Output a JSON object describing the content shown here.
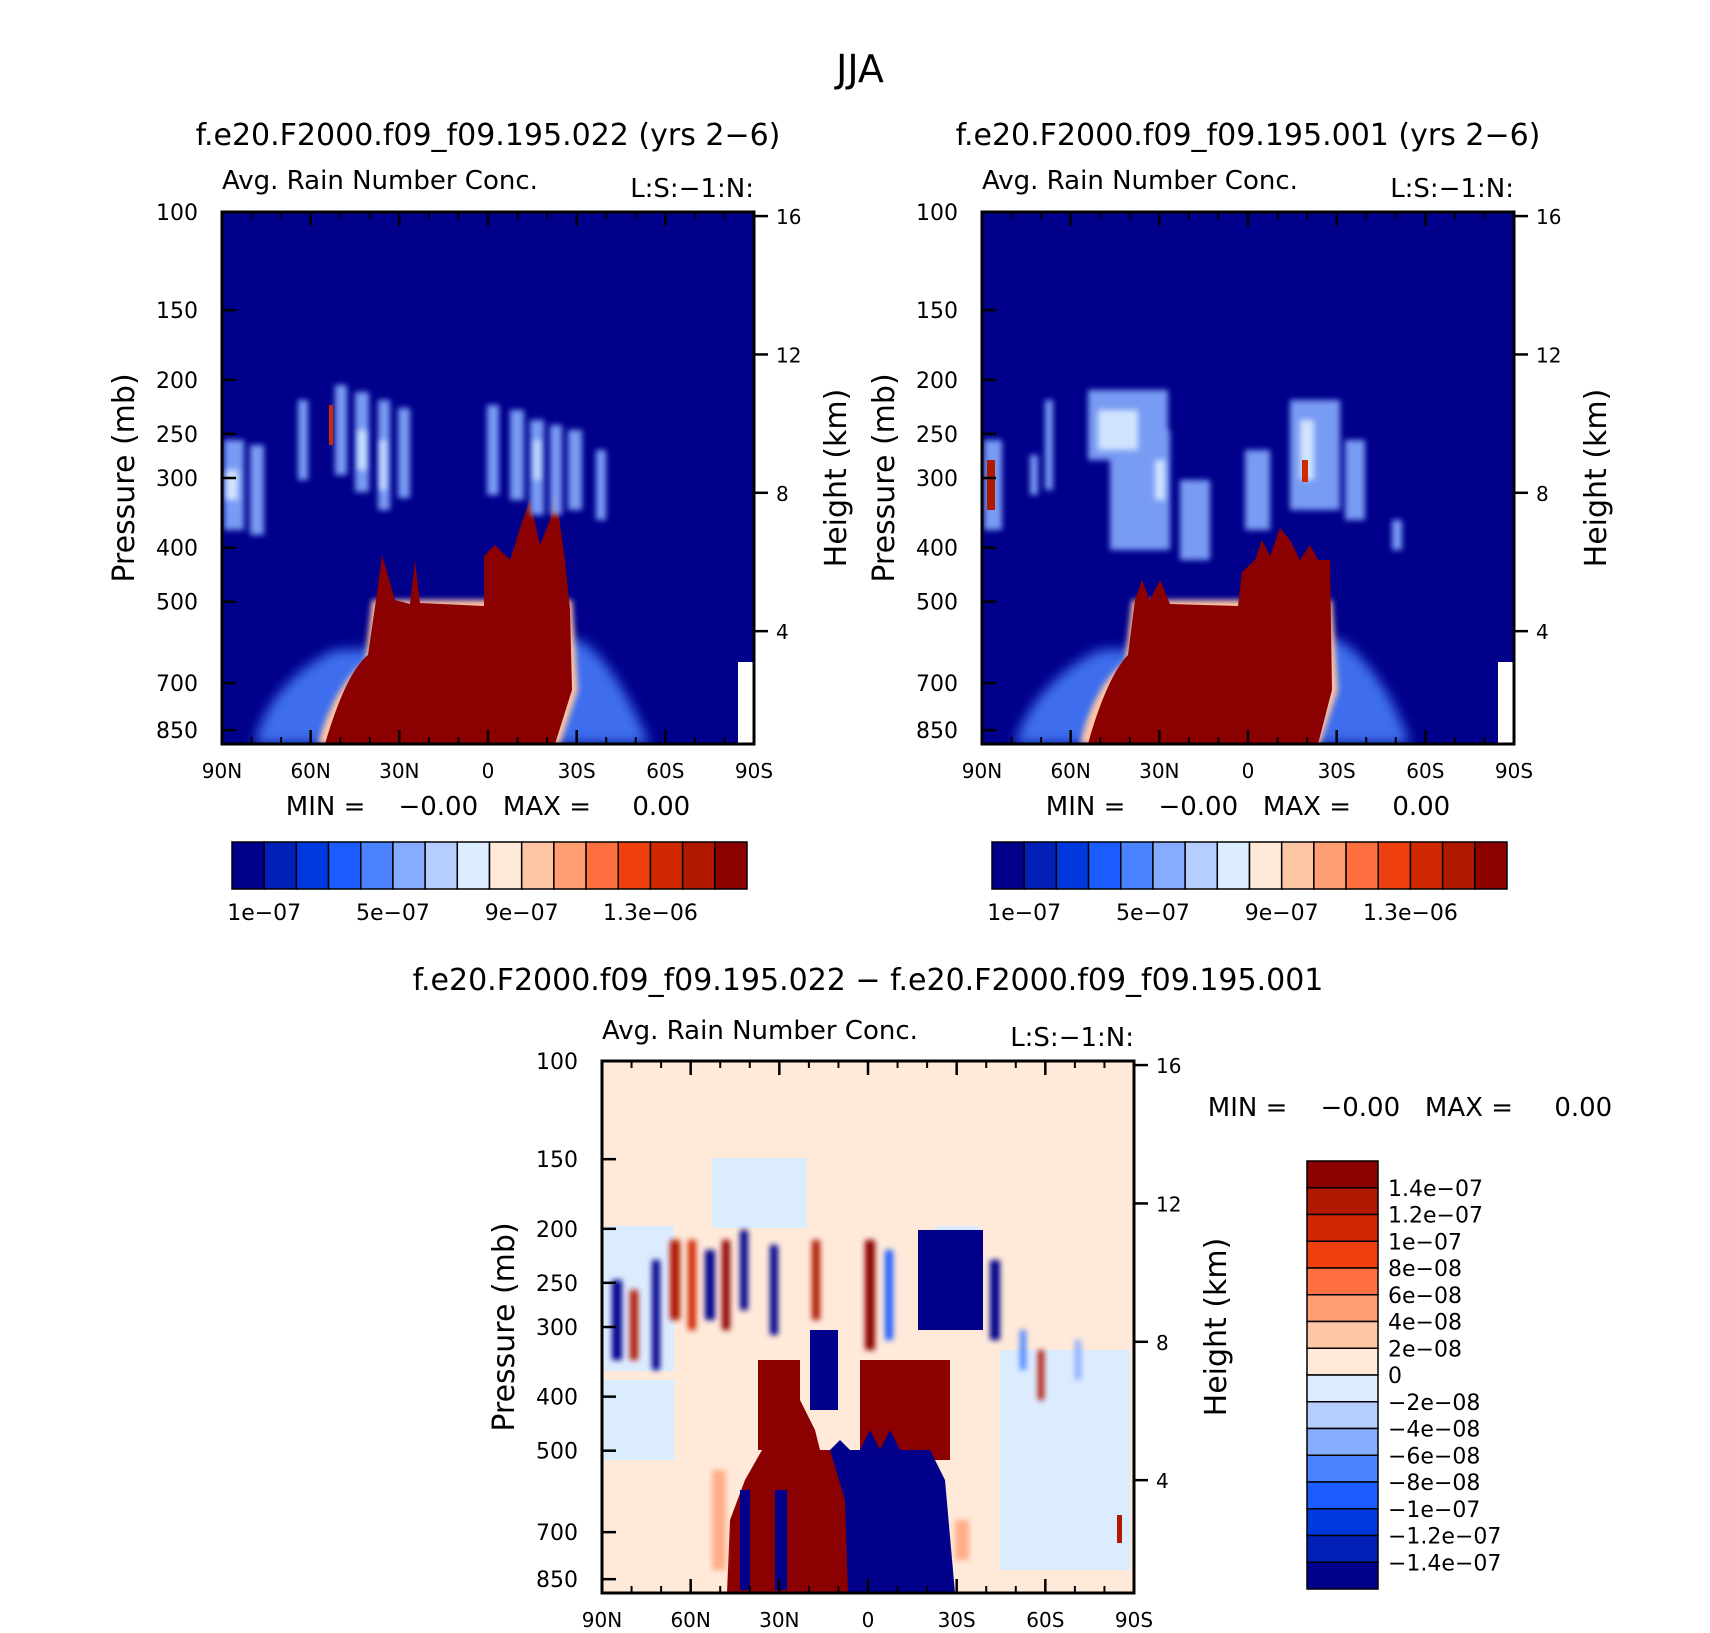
{
  "page": {
    "title": "JJA"
  },
  "panels": [
    {
      "id": "panel1",
      "title": "f.e20.F2000.f09_f09.195.022 (yrs 2−6)",
      "subtitle_left": "Avg. Rain Number Conc.",
      "subtitle_right": "L:S:−1:N:",
      "ylabel": "Pressure (mb)",
      "ylabel_right": "Height (km)",
      "minmax": "MIN =    −0.00   MAX =     0.00"
    },
    {
      "id": "panel2",
      "title": "f.e20.F2000.f09_f09.195.001 (yrs 2−6)",
      "subtitle_left": "Avg. Rain Number Conc.",
      "subtitle_right": "L:S:−1:N:",
      "ylabel": "Pressure (mb)",
      "ylabel_right": "Height (km)",
      "minmax": "MIN =    −0.00   MAX =     0.00"
    },
    {
      "id": "panel3",
      "title": "f.e20.F2000.f09_f09.195.022 − f.e20.F2000.f09_f09.195.001",
      "subtitle_left": "Avg. Rain Number Conc.",
      "subtitle_right": "L:S:−1:N:",
      "ylabel": "Pressure (mb)",
      "ylabel_right": "Height (km)",
      "minmax": "MIN =    −0.00   MAX =     0.00"
    }
  ],
  "chart_data": [
    {
      "type": "heatmap",
      "title": "f.e20.F2000.f09_f09.195.022 (yrs 2−6)",
      "subtitle": "Avg. Rain Number Conc.",
      "x_ticks": [
        "90N",
        "60N",
        "30N",
        "0",
        "30S",
        "60S",
        "90S"
      ],
      "x_range": [
        90,
        -90
      ],
      "y_ticks": [
        100,
        150,
        200,
        250,
        300,
        400,
        500,
        700,
        850
      ],
      "y_range_mb": [
        100,
        900
      ],
      "y_scale": "log",
      "y2_ticks": [
        16,
        12,
        8,
        4
      ],
      "colorbar_labels": [
        "1e−07",
        "5e−07",
        "9e−07",
        "1.3e−06"
      ],
      "colorbar_colors": [
        "#00008b",
        "#0020b8",
        "#0038e0",
        "#1a5cff",
        "#4a82ff",
        "#86acff",
        "#b6ceff",
        "#dcecff",
        "#ffeada",
        "#ffc6a6",
        "#ff9e72",
        "#ff7040",
        "#f04010",
        "#d02800",
        "#b01800",
        "#8b0000"
      ],
      "grid": false
    },
    {
      "type": "heatmap",
      "title": "f.e20.F2000.f09_f09.195.001 (yrs 2−6)",
      "subtitle": "Avg. Rain Number Conc.",
      "x_ticks": [
        "90N",
        "60N",
        "30N",
        "0",
        "30S",
        "60S",
        "90S"
      ],
      "x_range": [
        90,
        -90
      ],
      "y_ticks": [
        100,
        150,
        200,
        250,
        300,
        400,
        500,
        700,
        850
      ],
      "y_range_mb": [
        100,
        900
      ],
      "y_scale": "log",
      "y2_ticks": [
        16,
        12,
        8,
        4
      ],
      "colorbar_labels": [
        "1e−07",
        "5e−07",
        "9e−07",
        "1.3e−06"
      ],
      "grid": false
    },
    {
      "type": "heatmap",
      "title": "f.e20.F2000.f09_f09.195.022 − f.e20.F2000.f09_f09.195.001",
      "subtitle": "Avg. Rain Number Conc.",
      "x_ticks": [
        "90N",
        "60N",
        "30N",
        "0",
        "30S",
        "60S",
        "90S"
      ],
      "x_range": [
        90,
        -90
      ],
      "y_ticks": [
        100,
        150,
        200,
        250,
        300,
        400,
        500,
        700,
        850
      ],
      "y_range_mb": [
        100,
        900
      ],
      "y_scale": "log",
      "y2_ticks": [
        16,
        12,
        8,
        4
      ],
      "colorbar_labels": [
        "1.4e−07",
        "1.2e−07",
        "1e−07",
        "8e−08",
        "6e−08",
        "4e−08",
        "2e−08",
        "0",
        "−2e−08",
        "−4e−08",
        "−6e−08",
        "−8e−08",
        "−1e−07",
        "−1.2e−07",
        "−1.4e−07"
      ],
      "colorbar_colors": [
        "#8b0000",
        "#b01800",
        "#d02800",
        "#f04010",
        "#ff7040",
        "#ff9e72",
        "#ffc6a6",
        "#ffeada",
        "#dcecff",
        "#b6ceff",
        "#86acff",
        "#4a82ff",
        "#1a5cff",
        "#0038e0",
        "#0020b8",
        "#00008b"
      ],
      "background": "#ffeada",
      "grid": false
    }
  ]
}
